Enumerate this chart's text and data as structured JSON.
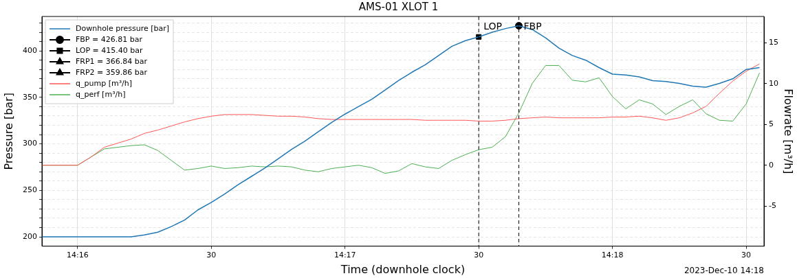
{
  "chart_data": {
    "type": "line",
    "title": "AMS-01 XLOT 1",
    "xlabel": "Time (downhole clock)",
    "ylabel": "Pressure [bar]",
    "y2label": "Flowrate [m³/h]",
    "x": [
      "2023-12-10T14:15:52",
      "2023-12-10T14:16:00",
      "2023-12-10T14:16:03",
      "2023-12-10T14:16:06",
      "2023-12-10T14:16:09",
      "2023-12-10T14:16:12",
      "2023-12-10T14:16:15",
      "2023-12-10T14:16:18",
      "2023-12-10T14:16:21",
      "2023-12-10T14:16:24",
      "2023-12-10T14:16:27",
      "2023-12-10T14:16:30",
      "2023-12-10T14:16:33",
      "2023-12-10T14:16:36",
      "2023-12-10T14:16:39",
      "2023-12-10T14:16:42",
      "2023-12-10T14:16:45",
      "2023-12-10T14:16:48",
      "2023-12-10T14:16:51",
      "2023-12-10T14:16:54",
      "2023-12-10T14:16:57",
      "2023-12-10T14:17:00",
      "2023-12-10T14:17:03",
      "2023-12-10T14:17:06",
      "2023-12-10T14:17:09",
      "2023-12-10T14:17:12",
      "2023-12-10T14:17:15",
      "2023-12-10T14:17:18",
      "2023-12-10T14:17:21",
      "2023-12-10T14:17:24",
      "2023-12-10T14:17:27",
      "2023-12-10T14:17:30",
      "2023-12-10T14:17:33",
      "2023-12-10T14:17:36",
      "2023-12-10T14:17:39",
      "2023-12-10T14:17:42",
      "2023-12-10T14:17:45",
      "2023-12-10T14:17:48",
      "2023-12-10T14:17:51",
      "2023-12-10T14:17:54",
      "2023-12-10T14:17:57",
      "2023-12-10T14:18:00",
      "2023-12-10T14:18:03",
      "2023-12-10T14:18:06",
      "2023-12-10T14:18:09",
      "2023-12-10T14:18:12",
      "2023-12-10T14:18:15",
      "2023-12-10T14:18:18",
      "2023-12-10T14:18:21",
      "2023-12-10T14:18:24",
      "2023-12-10T14:18:27",
      "2023-12-10T14:18:30",
      "2023-12-10T14:18:33"
    ],
    "series": [
      {
        "name": "Downhole pressure [bar]",
        "color": "#1f77b4",
        "values": [
          200,
          200,
          200,
          200,
          200,
          200,
          202,
          205,
          211,
          218,
          229,
          237,
          246,
          256,
          265,
          274,
          284,
          294,
          303,
          313,
          323,
          332,
          340,
          348,
          358,
          368,
          377,
          385,
          395,
          405,
          411,
          415,
          420,
          424,
          427,
          423,
          414,
          403,
          395,
          390,
          382,
          375,
          374,
          372,
          368,
          367,
          365,
          362,
          361,
          365,
          370,
          380,
          382
        ]
      },
      {
        "name": "FBP = 426.81 bar",
        "type": "scatter",
        "color": "#000000",
        "marker": "circle",
        "x": [
          "2023-12-10T14:17:39"
        ],
        "values": [
          427
        ]
      },
      {
        "name": "LOP = 415.40 bar",
        "type": "scatter",
        "color": "#000000",
        "marker": "square",
        "x": [
          "2023-12-10T14:17:30"
        ],
        "values": [
          415
        ]
      },
      {
        "name": "FRP1 = 366.84 bar",
        "type": "scatter",
        "color": "#000000",
        "marker": "triangle",
        "values": [
          null,
          null,
          null,
          null,
          null,
          null,
          null,
          null,
          null,
          null,
          null,
          null,
          null,
          null,
          null,
          null,
          null,
          null,
          null,
          null,
          null,
          null,
          null,
          null,
          null,
          null,
          null,
          null,
          null,
          null,
          null,
          null,
          null,
          null,
          null,
          null,
          null,
          null,
          null,
          null,
          null,
          null,
          null,
          null,
          null,
          null,
          null,
          null,
          null,
          null,
          null,
          null,
          null
        ]
      },
      {
        "name": "FRP2 = 359.86 bar",
        "type": "scatter",
        "color": "#000000",
        "marker": "triangle",
        "values": [
          null,
          null,
          null,
          null,
          null,
          null,
          null,
          null,
          null,
          null,
          null,
          null,
          null,
          null,
          null,
          null,
          null,
          null,
          null,
          null,
          null,
          null,
          null,
          null,
          null,
          null,
          null,
          null,
          null,
          null,
          null,
          null,
          null,
          null,
          null,
          null,
          null,
          null,
          null,
          null,
          null,
          null,
          null,
          null,
          null,
          null,
          null,
          null,
          null,
          null,
          null,
          null,
          null
        ]
      },
      {
        "name": "q_pump [m³/h]",
        "color": "#ff5555",
        "axis": "y2",
        "values": [
          0,
          0,
          1.0,
          2.2,
          2.7,
          3.2,
          3.9,
          4.3,
          4.8,
          5.3,
          5.7,
          6.0,
          6.2,
          6.2,
          6.2,
          6.1,
          6.0,
          6.0,
          5.9,
          5.7,
          5.6,
          5.6,
          5.6,
          5.6,
          5.6,
          5.6,
          5.6,
          5.5,
          5.5,
          5.5,
          5.5,
          5.4,
          5.4,
          5.5,
          5.7,
          5.8,
          5.9,
          5.8,
          5.8,
          5.8,
          5.8,
          5.9,
          5.9,
          6.0,
          5.8,
          5.5,
          5.8,
          6.4,
          7.2,
          8.8,
          10.3,
          11.5,
          12.4
        ]
      },
      {
        "name": "q_perf [m³/h]",
        "color": "#4caf50",
        "axis": "y2",
        "values": [
          0,
          0,
          1.0,
          2.0,
          2.2,
          2.4,
          2.5,
          1.8,
          0.6,
          -0.6,
          -0.4,
          -0.1,
          -0.4,
          -0.3,
          -0.1,
          -0.2,
          -0.1,
          -0.2,
          -0.6,
          -0.8,
          -0.4,
          -0.2,
          0.0,
          -0.3,
          -1.0,
          -0.7,
          0.2,
          -0.2,
          -0.4,
          0.6,
          1.3,
          1.9,
          2.2,
          3.5,
          6.4,
          10.0,
          12.2,
          12.2,
          10.4,
          10.2,
          10.7,
          8.4,
          6.9,
          8.0,
          7.5,
          6.2,
          7.2,
          8.0,
          6.3,
          5.5,
          5.4,
          7.5,
          11.3
        ]
      }
    ],
    "xlim": [
      "2023-12-10T14:15:52",
      "2023-12-10T14:18:34"
    ],
    "xticks": [
      {
        "value": "2023-12-10T14:16",
        "label": "14:16"
      },
      {
        "value": "2023-12-10T14:16:30",
        "label": "30"
      },
      {
        "value": "2023-12-10T14:17",
        "label": "14:17"
      },
      {
        "value": "2023-12-10T14:17:30",
        "label": "30"
      },
      {
        "value": "2023-12-10T14:18",
        "label": "14:18"
      },
      {
        "value": "2023-12-10T14:18:30",
        "label": "30"
      }
    ],
    "ylim": [
      190,
      437
    ],
    "yticks": [
      200,
      {
        "value": 210,
        "label": null
      },
      {
        "value": 220,
        "label": null
      },
      {
        "value": 230,
        "label": null
      },
      {
        "value": 240,
        "label": null
      },
      250,
      {
        "value": 260,
        "label": null
      },
      {
        "value": 270,
        "label": null
      },
      {
        "value": 280,
        "label": null
      },
      {
        "value": 290,
        "label": null
      },
      300,
      {
        "value": 310,
        "label": null
      },
      {
        "value": 320,
        "label": null
      },
      {
        "value": 330,
        "label": null
      },
      {
        "value": 340,
        "label": null
      },
      350,
      {
        "value": 360,
        "label": null
      },
      {
        "value": 370,
        "label": null
      },
      {
        "value": 380,
        "label": null
      },
      {
        "value": 390,
        "label": null
      },
      400,
      {
        "value": 410,
        "label": null
      },
      {
        "value": 420,
        "label": null
      },
      {
        "value": 430,
        "label": null
      }
    ],
    "y2lim": [
      -9.9,
      18.2
    ],
    "y2ticks": [
      -5,
      0,
      5,
      10,
      15
    ],
    "ref_lines": [
      {
        "axis": "x",
        "value": "2023-12-10T14:17:30",
        "label": "LOP",
        "color": "#000000",
        "line_style": "dashed"
      },
      {
        "axis": "x",
        "value": "2023-12-10T14:17:39",
        "label": "FBP",
        "color": "#000000",
        "line_style": "dashed"
      }
    ],
    "annotations": [
      "2023-Dec-10 14:18"
    ],
    "grid": true,
    "marker": "none",
    "legend": "top left"
  }
}
